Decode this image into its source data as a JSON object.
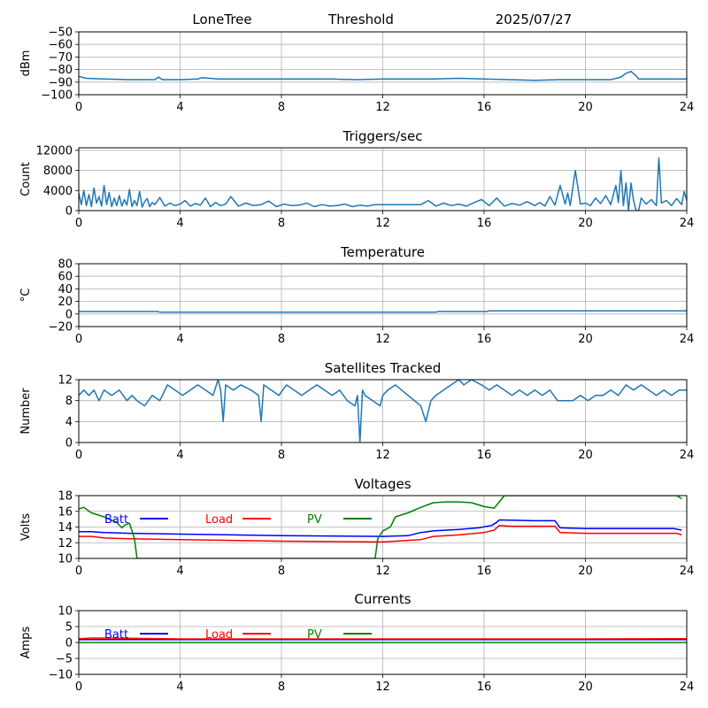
{
  "header": {
    "station": "LoneTree",
    "mode": "Threshold",
    "date": "2025/07/27"
  },
  "chart_data": [
    {
      "type": "line",
      "title": "",
      "ylabel": "dBm",
      "xlim": [
        0,
        24
      ],
      "ylim": [
        -100,
        -50
      ],
      "xticks": [
        0,
        4,
        8,
        12,
        16,
        20,
        24
      ],
      "yticks": [
        -100,
        -90,
        -80,
        -70,
        -60,
        -50
      ],
      "grid": true,
      "series": [
        {
          "color": "#1f77b4",
          "x": [
            0,
            0.3,
            1,
            2,
            3,
            3.15,
            3.3,
            4,
            4.7,
            4.85,
            5.5,
            7,
            8,
            10,
            11,
            12,
            13,
            14,
            15,
            16,
            17,
            18,
            19,
            20,
            21,
            21.4,
            21.6,
            21.8,
            22,
            22.1,
            23,
            24
          ],
          "y": [
            -85.5,
            -87,
            -87.5,
            -88,
            -88,
            -86,
            -88,
            -88,
            -87.5,
            -86.5,
            -87.5,
            -87.5,
            -87.5,
            -87.5,
            -88,
            -87.5,
            -87.5,
            -87.5,
            -87,
            -87.5,
            -88,
            -88.5,
            -88,
            -88,
            -88,
            -86,
            -83,
            -81.5,
            -85,
            -87.5,
            -87.5,
            -87.5
          ]
        }
      ]
    },
    {
      "type": "line",
      "title": "Triggers/sec",
      "ylabel": "Count",
      "xlim": [
        0,
        24
      ],
      "ylim": [
        0,
        12500
      ],
      "xticks": [
        0,
        4,
        8,
        12,
        16,
        20,
        24
      ],
      "yticks": [
        0,
        4000,
        8000,
        12000
      ],
      "grid": true,
      "series": [
        {
          "color": "#1f77b4",
          "x": [
            0,
            0.1,
            0.2,
            0.3,
            0.4,
            0.5,
            0.6,
            0.7,
            0.8,
            0.9,
            1.0,
            1.1,
            1.2,
            1.3,
            1.4,
            1.5,
            1.6,
            1.7,
            1.8,
            1.9,
            2.0,
            2.1,
            2.2,
            2.3,
            2.4,
            2.5,
            2.6,
            2.7,
            2.8,
            2.9,
            3.0,
            3.2,
            3.4,
            3.6,
            3.8,
            4.0,
            4.2,
            4.4,
            4.6,
            4.8,
            5.0,
            5.2,
            5.4,
            5.6,
            5.8,
            6.0,
            6.3,
            6.6,
            6.9,
            7.2,
            7.5,
            7.8,
            8.1,
            8.4,
            8.7,
            9.0,
            9.3,
            9.6,
            9.9,
            10.2,
            10.5,
            10.8,
            11.1,
            11.4,
            11.7,
            12.0,
            12.5,
            13.0,
            13.5,
            13.8,
            14.1,
            14.4,
            14.7,
            15.0,
            15.3,
            15.6,
            15.9,
            16.2,
            16.5,
            16.8,
            17.1,
            17.4,
            17.7,
            18.0,
            18.2,
            18.4,
            18.6,
            18.8,
            19.0,
            19.2,
            19.3,
            19.4,
            19.6,
            19.8,
            20.0,
            20.2,
            20.4,
            20.6,
            20.8,
            21.0,
            21.2,
            21.3,
            21.4,
            21.5,
            21.6,
            21.7,
            21.8,
            21.9,
            22.0,
            22.1,
            22.2,
            22.4,
            22.6,
            22.8,
            22.9,
            23.0,
            23.2,
            23.4,
            23.6,
            23.8,
            23.9,
            24.0
          ],
          "y": [
            3500,
            1200,
            4000,
            1000,
            3200,
            800,
            4500,
            1500,
            2800,
            900,
            5000,
            1200,
            3600,
            800,
            2500,
            1000,
            3000,
            900,
            2200,
            1100,
            4200,
            800,
            2000,
            1000,
            3800,
            700,
            1800,
            2400,
            800,
            1600,
            1200,
            2600,
            900,
            1500,
            1000,
            1300,
            2000,
            900,
            1400,
            1100,
            2500,
            800,
            1600,
            1000,
            1300,
            2800,
            900,
            1500,
            1000,
            1200,
            1900,
            800,
            1300,
            1000,
            1100,
            1500,
            800,
            1200,
            900,
            1000,
            1300,
            800,
            1100,
            900,
            1200,
            1200,
            1200,
            1200,
            1200,
            2000,
            900,
            1500,
            1000,
            1300,
            900,
            1600,
            2200,
            1000,
            2500,
            900,
            1400,
            1100,
            1800,
            1000,
            1600,
            900,
            2800,
            1100,
            5000,
            1300,
            3500,
            1000,
            8000,
            1300,
            1500,
            1000,
            2500,
            1400,
            3000,
            1200,
            5000,
            1600,
            8000,
            1000,
            5500,
            0,
            5500,
            2000,
            0,
            0,
            2500,
            1300,
            2200,
            1000,
            10500,
            1500,
            2000,
            1000,
            2400,
            1200,
            3800,
            2000
          ]
        }
      ]
    },
    {
      "type": "line",
      "title": "Temperature",
      "ylabel": "°C",
      "xlim": [
        0,
        24
      ],
      "ylim": [
        -20,
        80
      ],
      "xticks": [
        0,
        4,
        8,
        12,
        16,
        20,
        24
      ],
      "yticks": [
        -20,
        0,
        20,
        40,
        60,
        80
      ],
      "grid": true,
      "series": [
        {
          "color": "#1f77b4",
          "x": [
            0,
            3.1,
            3.2,
            14.1,
            14.2,
            16.1,
            16.2,
            24
          ],
          "y": [
            4,
            4,
            3,
            3,
            4,
            4,
            5,
            5
          ]
        }
      ]
    },
    {
      "type": "line",
      "title": "Satellites Tracked",
      "ylabel": "Number",
      "xlim": [
        0,
        24
      ],
      "ylim": [
        0,
        12
      ],
      "xticks": [
        0,
        4,
        8,
        12,
        16,
        20,
        24
      ],
      "yticks": [
        0,
        4,
        8,
        12
      ],
      "grid": true,
      "series": [
        {
          "color": "#1f77b4",
          "x": [
            0,
            0.2,
            0.4,
            0.6,
            0.8,
            1.0,
            1.3,
            1.6,
            1.9,
            2.1,
            2.3,
            2.6,
            2.9,
            3.2,
            3.5,
            3.8,
            4.1,
            4.4,
            4.7,
            5.0,
            5.3,
            5.5,
            5.6,
            5.7,
            5.8,
            6.1,
            6.4,
            6.8,
            7.1,
            7.2,
            7.3,
            7.6,
            7.9,
            8.2,
            8.5,
            8.8,
            9.1,
            9.4,
            9.7,
            10.0,
            10.3,
            10.6,
            10.9,
            11.0,
            11.1,
            11.2,
            11.3,
            11.6,
            11.9,
            12.0,
            12.2,
            12.5,
            13.0,
            13.5,
            13.7,
            13.9,
            14.1,
            14.4,
            14.7,
            15.0,
            15.2,
            15.5,
            15.9,
            16.2,
            16.5,
            16.8,
            17.1,
            17.4,
            17.7,
            18.0,
            18.3,
            18.6,
            18.9,
            19.2,
            19.5,
            19.8,
            20.1,
            20.4,
            20.7,
            21.0,
            21.3,
            21.6,
            21.9,
            22.2,
            22.5,
            22.8,
            23.1,
            23.4,
            23.7,
            24.0
          ],
          "y": [
            9,
            10,
            9,
            10,
            8,
            10,
            9,
            10,
            8,
            9,
            8,
            7,
            9,
            8,
            11,
            10,
            9,
            10,
            11,
            10,
            9,
            12,
            10,
            4,
            11,
            10,
            11,
            10,
            9,
            4,
            11,
            10,
            9,
            11,
            10,
            9,
            10,
            11,
            10,
            9,
            10,
            8,
            7,
            9,
            0,
            10,
            9,
            8,
            7,
            9,
            10,
            11,
            9,
            7,
            4,
            8,
            9,
            10,
            11,
            12,
            11,
            12,
            11,
            10,
            11,
            10,
            9,
            10,
            9,
            10,
            9,
            10,
            8,
            8,
            8,
            9,
            8,
            9,
            9,
            10,
            9,
            11,
            10,
            11,
            10,
            9,
            10,
            9,
            10,
            10
          ]
        }
      ]
    },
    {
      "type": "line",
      "title": "Voltages",
      "ylabel": "Volts",
      "xlim": [
        0,
        24
      ],
      "ylim": [
        10,
        18
      ],
      "xticks": [
        0,
        4,
        8,
        12,
        16,
        20,
        24
      ],
      "yticks": [
        10,
        12,
        14,
        16,
        18
      ],
      "grid": true,
      "legend": [
        "Batt",
        "Load",
        "PV"
      ],
      "legend_placement": "top-left, horizontal",
      "series": [
        {
          "name": "Batt",
          "color": "#0000ff",
          "x": [
            0,
            0.5,
            1,
            2,
            4,
            8,
            12,
            13,
            13.5,
            14,
            15,
            15.8,
            16.3,
            16.5,
            16.6,
            18,
            18.8,
            19,
            20,
            22,
            23.5,
            23.8
          ],
          "y": [
            13.4,
            13.4,
            13.3,
            13.2,
            13.1,
            12.9,
            12.8,
            12.9,
            13.3,
            13.5,
            13.7,
            13.9,
            14.2,
            14.6,
            14.9,
            14.8,
            14.8,
            13.9,
            13.8,
            13.8,
            13.8,
            13.6
          ]
        },
        {
          "name": "Load",
          "color": "#ff0000",
          "x": [
            0,
            0.5,
            1,
            2,
            4,
            8,
            12,
            13.5,
            14,
            15,
            16,
            16.4,
            16.6,
            17,
            18.8,
            19,
            20,
            22,
            23.6,
            23.8
          ],
          "y": [
            12.8,
            12.8,
            12.6,
            12.5,
            12.4,
            12.2,
            12.1,
            12.4,
            12.8,
            13.0,
            13.3,
            13.6,
            14.2,
            14.1,
            14.1,
            13.3,
            13.2,
            13.2,
            13.2,
            13.0
          ],
          "note": ""
        },
        {
          "name": "PV",
          "color": "#008000",
          "x": [
            0,
            0.2,
            0.5,
            1.0,
            1.5,
            1.7,
            1.8,
            2.0,
            2.2,
            2.3,
            11.7,
            11.8,
            12.0,
            12.3,
            12.5,
            13.0,
            13.5,
            14.0,
            14.5,
            15.0,
            15.5,
            16.0,
            16.4,
            16.5,
            16.8,
            23.6,
            23.8
          ],
          "y": [
            16.3,
            16.5,
            15.8,
            15.3,
            14.6,
            13.9,
            14.2,
            14.5,
            12.5,
            10,
            10,
            12.5,
            13.5,
            14.0,
            15.3,
            15.8,
            16.5,
            17.1,
            17.2,
            17.2,
            17.1,
            16.6,
            16.4,
            16.8,
            18,
            18,
            17.6
          ]
        }
      ]
    },
    {
      "type": "line",
      "title": "Currents",
      "ylabel": "Amps",
      "xlim": [
        0,
        24
      ],
      "ylim": [
        -10,
        10
      ],
      "xticks": [
        0,
        4,
        8,
        12,
        16,
        20,
        24
      ],
      "yticks": [
        -10,
        -5,
        0,
        5,
        10
      ],
      "grid": true,
      "legend": [
        "Batt",
        "Load",
        "PV"
      ],
      "legend_placement": "top-left, horizontal",
      "series": [
        {
          "name": "Batt",
          "color": "#0000ff",
          "x": [
            0,
            24
          ],
          "y": [
            0.9,
            0.9
          ]
        },
        {
          "name": "Load",
          "color": "#ff0000",
          "x": [
            0,
            0.5,
            2,
            4,
            8,
            12,
            16,
            20,
            24
          ],
          "y": [
            1.2,
            1.4,
            1.3,
            1.1,
            1.1,
            1.1,
            1.1,
            1.1,
            1.2
          ]
        },
        {
          "name": "PV",
          "color": "#008000",
          "x": [
            0,
            24
          ],
          "y": [
            0,
            0
          ]
        }
      ]
    }
  ]
}
